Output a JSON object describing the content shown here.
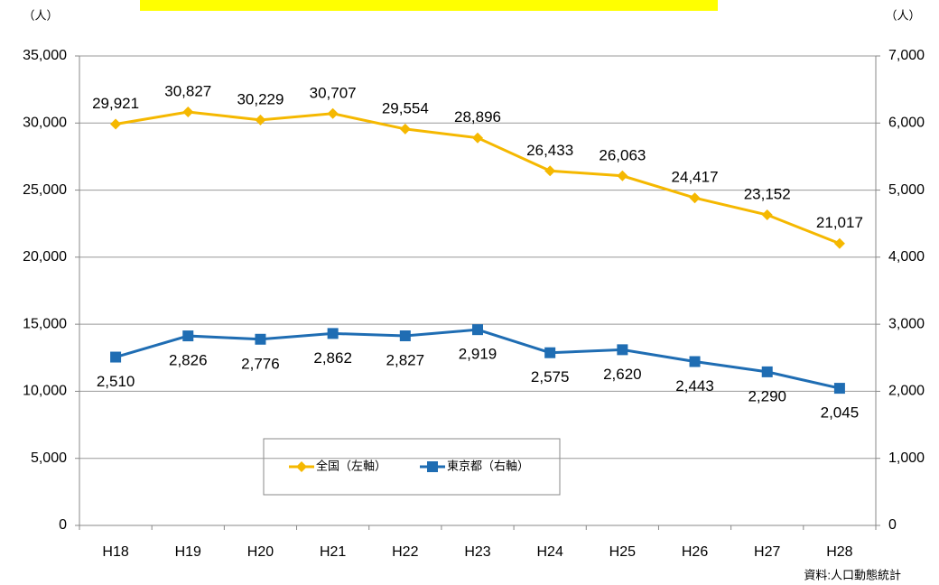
{
  "chart_data": {
    "type": "line",
    "y_label": "（人）",
    "y2_label": "（人）",
    "source": "資料:人口動態統計",
    "categories": [
      "H18",
      "H19",
      "H20",
      "H21",
      "H22",
      "H23",
      "H24",
      "H25",
      "H26",
      "H27",
      "H28"
    ],
    "series": [
      {
        "name": "全国（左軸）",
        "color": "#f5b800",
        "marker": "diamond",
        "values": [
          29921,
          30827,
          30229,
          30707,
          29554,
          28896,
          26433,
          26063,
          24417,
          23152,
          21017
        ],
        "value_labels": [
          "29,921",
          "30,827",
          "30,229",
          "30,707",
          "29,554",
          "28,896",
          "26,433",
          "26,063",
          "24,417",
          "23,152",
          "21,017"
        ]
      },
      {
        "name": "東京都（右軸）",
        "color": "#1f6db3",
        "marker": "square",
        "axis": "y2",
        "values": [
          2510,
          2826,
          2776,
          2862,
          2827,
          2919,
          2575,
          2620,
          2443,
          2290,
          2045
        ],
        "value_labels": [
          "2,510",
          "2,826",
          "2,776",
          "2,862",
          "2,827",
          "2,919",
          "2,575",
          "2,620",
          "2,443",
          "2,290",
          "2,045"
        ]
      }
    ],
    "ylim": [
      0,
      35000
    ],
    "yticks": [
      0,
      {
        "value": 5000,
        "label": "5,000"
      },
      {
        "value": 10000,
        "label": "10,000"
      },
      {
        "value": 15000,
        "label": "15,000"
      },
      {
        "value": 20000,
        "label": "20,000"
      },
      {
        "value": 25000,
        "label": "25,000"
      },
      {
        "value": 30000,
        "label": "30,000"
      },
      {
        "value": 35000,
        "label": "35,000"
      }
    ],
    "y2lim": [
      0,
      7000
    ],
    "y2ticks": [
      0,
      {
        "value": 1000,
        "label": "1,000"
      },
      {
        "value": 2000,
        "label": "2,000"
      },
      {
        "value": 3000,
        "label": "3,000"
      },
      {
        "value": 4000,
        "label": "4,000"
      },
      {
        "value": 5000,
        "label": "5,000"
      },
      {
        "value": 6000,
        "label": "6,000"
      },
      {
        "value": 7000,
        "label": "7,000"
      }
    ],
    "grid": true
  }
}
